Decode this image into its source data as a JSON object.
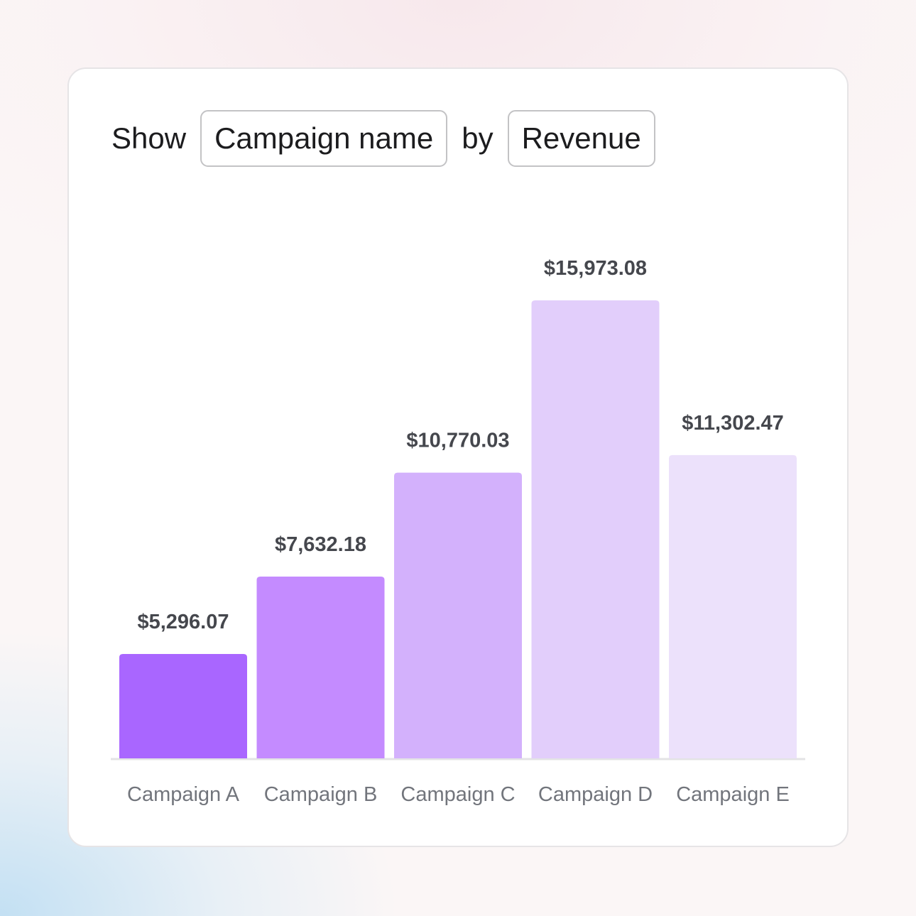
{
  "controls": {
    "show_label": "Show",
    "group_by_value": "Campaign name",
    "by_label": "by",
    "metric_value": "Revenue"
  },
  "chart_data": {
    "type": "bar",
    "categories": [
      "Campaign A",
      "Campaign B",
      "Campaign C",
      "Campaign D",
      "Campaign E"
    ],
    "values": [
      5296.07,
      7632.18,
      10770.03,
      15973.08,
      11302.47
    ],
    "data_labels": [
      "$5,296.07",
      "$7,632.18",
      "$10,770.03",
      "$15,973.08",
      "$11,302.47"
    ],
    "colors": [
      "#a966ff",
      "#c48bff",
      "#d3b1fc",
      "#e2cefb",
      "#ece1fb"
    ],
    "title": "",
    "xlabel": "",
    "ylabel": "",
    "grid": false,
    "legend": "none"
  }
}
